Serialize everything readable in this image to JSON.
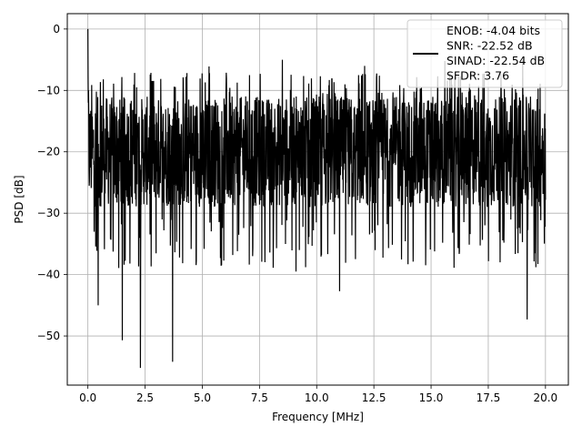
{
  "chart_data": {
    "type": "line",
    "xlabel": "Frequency [MHz]",
    "ylabel": "PSD [dB]",
    "xlim": [
      -0.9,
      21.0
    ],
    "ylim": [
      -58,
      2.5
    ],
    "xticks": [
      0.0,
      2.5,
      5.0,
      7.5,
      10.0,
      12.5,
      15.0,
      17.5,
      20.0
    ],
    "xtick_labels": [
      "0.0",
      "2.5",
      "5.0",
      "7.5",
      "10.0",
      "12.5",
      "15.0",
      "17.5",
      "20.0"
    ],
    "yticks": [
      0,
      -10,
      -20,
      -30,
      -40,
      -50
    ],
    "ytick_labels": [
      "0",
      "−10",
      "−20",
      "−30",
      "−40",
      "−50"
    ],
    "grid": true,
    "legend_position": "top-right",
    "series": [
      {
        "name": "ENOB: -4.04 bits\nSNR: -22.52 dB\nSINAD: -22.54 dB\nSFDR: 3.76",
        "color": "#000000",
        "x_range": [
          0,
          20
        ],
        "peak": {
          "x": 0.0,
          "y": 0
        },
        "noise_floor_band": [
          -29,
          -11
        ],
        "notable_min_dips": [
          {
            "x": 0.45,
            "y": -45
          },
          {
            "x": 1.5,
            "y": -50.7
          },
          {
            "x": 2.3,
            "y": -55.2
          },
          {
            "x": 3.7,
            "y": -54.2
          },
          {
            "x": 9.1,
            "y": -39.5
          },
          {
            "x": 11.0,
            "y": -42.7
          },
          {
            "x": 19.2,
            "y": -47.3
          }
        ],
        "notable_max_peaks": [
          {
            "x": 5.3,
            "y": -6.1
          },
          {
            "x": 8.5,
            "y": -5.0
          },
          {
            "x": 12.1,
            "y": -6.0
          },
          {
            "x": 15.6,
            "y": -5.2
          },
          {
            "x": 19.0,
            "y": -5.1
          }
        ]
      }
    ]
  }
}
